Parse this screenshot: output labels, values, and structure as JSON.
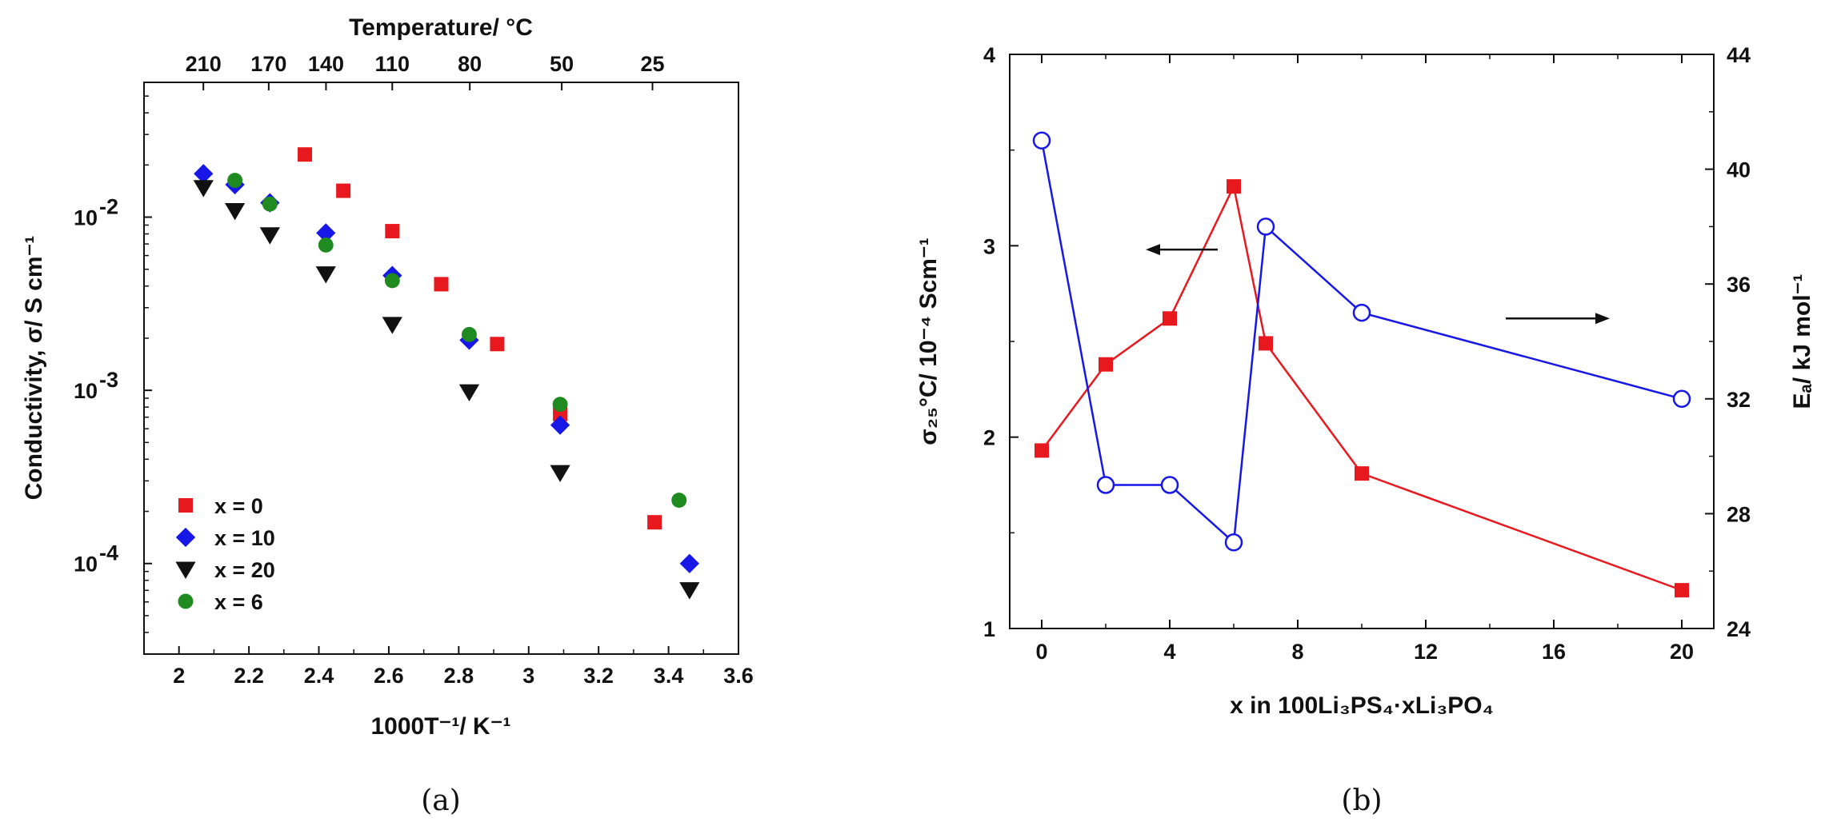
{
  "chart_data": [
    {
      "panel_label": "(a)",
      "type": "scatter",
      "xlabel": "1000T⁻¹/ K⁻¹",
      "ylabel": "Conductivity, σ/ S cm⁻¹",
      "top_axis_label": "Temperature/ °C",
      "top_axis_ticks": [
        "210",
        "170",
        "140",
        "110",
        "80",
        "50",
        "25"
      ],
      "xlim": [
        1.9,
        3.6
      ],
      "xticks": [
        2.0,
        2.2,
        2.4,
        2.6,
        2.8,
        3.0,
        3.2,
        3.4,
        3.6
      ],
      "y_scale": "log",
      "ylim": [
        3e-05,
        0.06
      ],
      "yticks": [
        0.0001,
        0.001,
        0.01
      ],
      "ytick_labels": [
        [
          "10",
          "-4"
        ],
        [
          "10",
          "-3"
        ],
        [
          "10",
          "-2"
        ]
      ],
      "legend_position": "bottom-left",
      "series": [
        {
          "name": "x = 0",
          "marker": "square",
          "color": "#e8191e",
          "points": [
            [
              2.36,
              0.023
            ],
            [
              2.47,
              0.0142
            ],
            [
              2.61,
              0.0083
            ],
            [
              2.75,
              0.0041
            ],
            [
              2.91,
              0.00185
            ],
            [
              3.09,
              0.00073
            ],
            [
              3.36,
              0.000173
            ]
          ]
        },
        {
          "name": "x = 10",
          "marker": "diamond",
          "color": "#1717e8",
          "points": [
            [
              2.07,
              0.0178
            ],
            [
              2.16,
              0.0154
            ],
            [
              2.26,
              0.0121
            ],
            [
              2.42,
              0.0081
            ],
            [
              2.61,
              0.0046
            ],
            [
              2.83,
              0.00195
            ],
            [
              3.09,
              0.00063
            ],
            [
              3.46,
              0.0001
            ]
          ]
        },
        {
          "name": "x = 20",
          "marker": "triangle-down",
          "color": "#111111",
          "points": [
            [
              2.07,
              0.0148
            ],
            [
              2.16,
              0.0109
            ],
            [
              2.26,
              0.0079
            ],
            [
              2.42,
              0.0047
            ],
            [
              2.61,
              0.0024
            ],
            [
              2.83,
              0.00098
            ],
            [
              3.09,
              0.000335
            ],
            [
              3.46,
              7.05e-05
            ]
          ]
        },
        {
          "name": "x = 6",
          "marker": "circle",
          "color": "#1f8a1f",
          "points": [
            [
              2.16,
              0.0163
            ],
            [
              2.26,
              0.0119
            ],
            [
              2.42,
              0.0069
            ],
            [
              2.61,
              0.0043
            ],
            [
              2.83,
              0.0021
            ],
            [
              3.09,
              0.00083
            ],
            [
              3.43,
              0.000232
            ]
          ]
        }
      ]
    },
    {
      "panel_label": "(b)",
      "type": "line",
      "xlabel": "x in 100Li₃PS₄·xLi₃PO₄",
      "ylabel": "σ₂₅°C/ 10⁻⁴ Scm⁻¹",
      "ylabel_right": "Eₐ/ kJ mol⁻¹",
      "xlim": [
        -1,
        21
      ],
      "xticks": [
        0,
        4,
        8,
        12,
        16,
        20
      ],
      "ylim": [
        1,
        4
      ],
      "yticks": [
        1,
        2,
        3,
        4
      ],
      "ylim_right": [
        24,
        44
      ],
      "yticks_right": [
        24,
        28,
        32,
        36,
        40,
        44
      ],
      "series": [
        {
          "name": "",
          "axis": "left",
          "marker": "square-filled",
          "color": "#e8191e",
          "x": [
            0,
            2,
            4,
            6,
            7,
            10,
            20
          ],
          "y": [
            1.93,
            2.38,
            2.62,
            3.31,
            2.49,
            1.81,
            1.2
          ]
        },
        {
          "name": "",
          "axis": "right",
          "marker": "circle-open",
          "color": "#1717e8",
          "x": [
            0,
            2,
            4,
            6,
            7,
            10,
            20
          ],
          "y": [
            41,
            29,
            29,
            27,
            38,
            35,
            32
          ]
        }
      ],
      "annotations": [
        {
          "type": "arrow",
          "direction": "left",
          "points_to_axis": "left",
          "at": [
            [
              5.5,
              2.98
            ],
            [
              3.4,
              2.98
            ]
          ]
        },
        {
          "type": "arrow",
          "direction": "right",
          "points_to_axis": "right",
          "at": [
            [
              14.5,
              34.8
            ],
            [
              17.6,
              34.8
            ]
          ]
        }
      ]
    }
  ]
}
